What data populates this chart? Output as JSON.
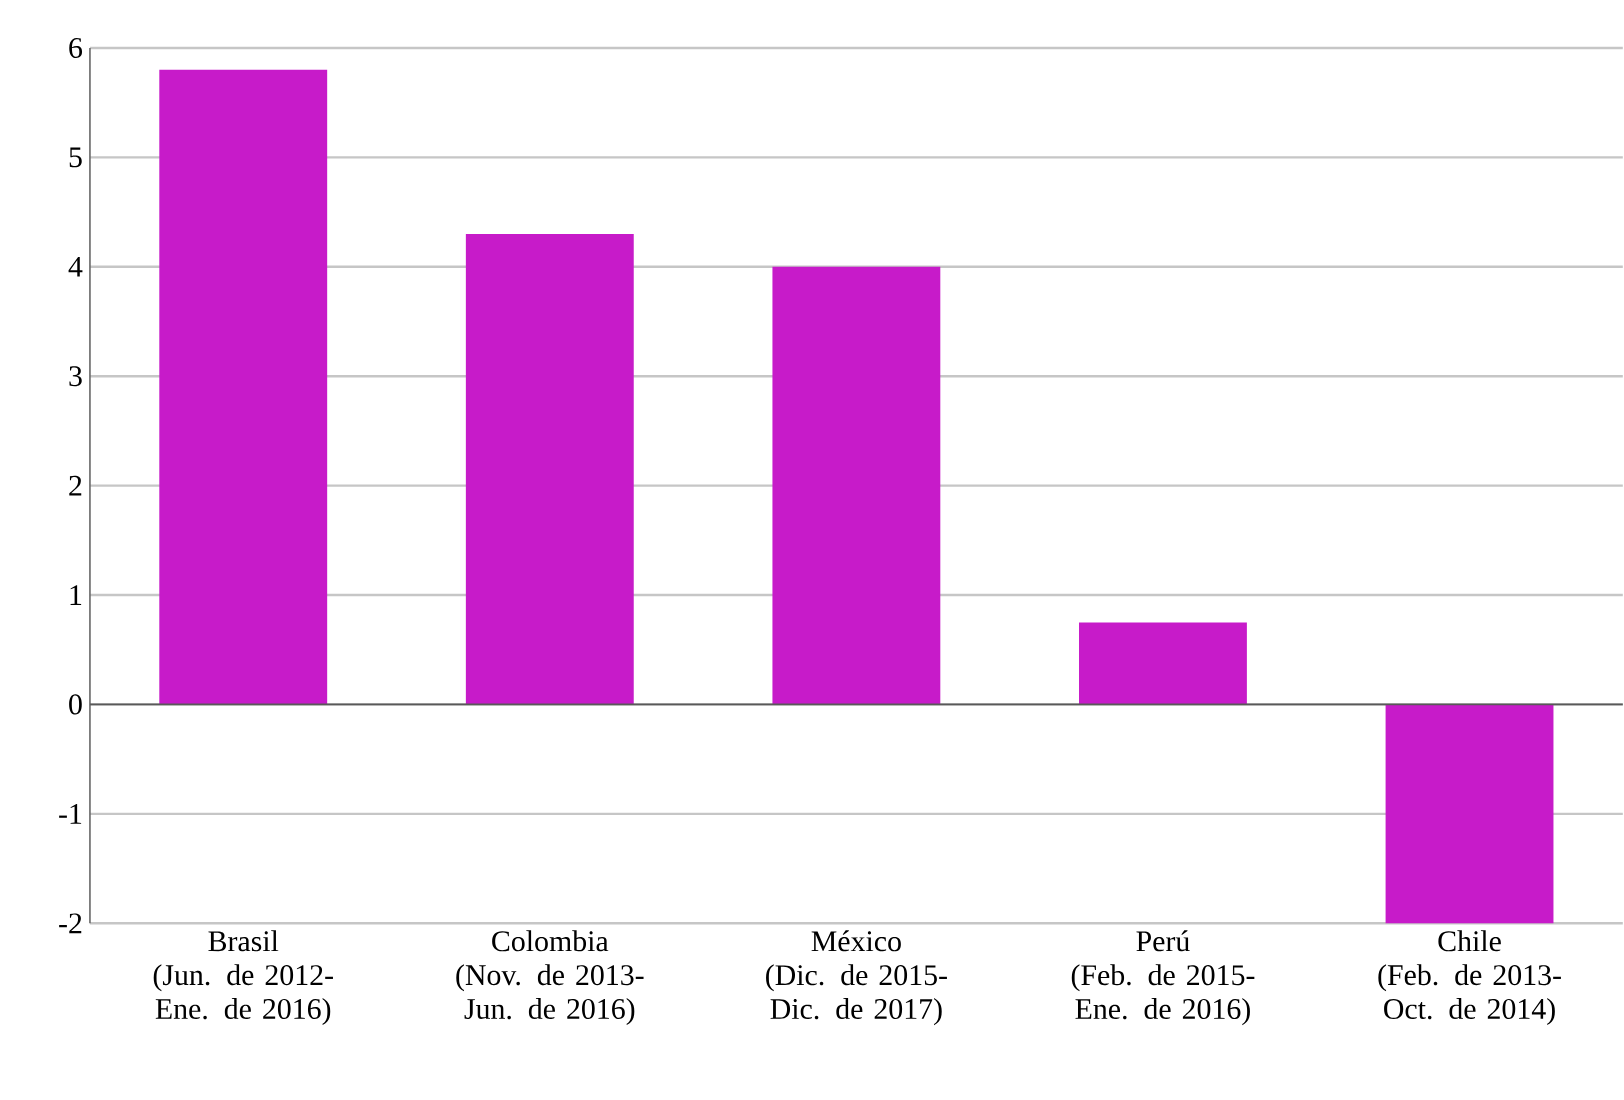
{
  "chart_data": {
    "type": "bar",
    "categories": [
      "Brasil\n(Jun. de 2012-\nEne. de 2016)",
      "Colombia\n(Nov. de 2013-\nJun. de 2016)",
      "México\n(Dic. de 2015-\nDic. de 2017)",
      "Perú\n(Feb. de 2015-\nEne. de 2016)",
      "Chile\n(Feb. de 2013-\nOct. de 2014)"
    ],
    "values": [
      5.8,
      4.3,
      4.0,
      0.75,
      -2.0
    ],
    "color": "#c71bc9",
    "ylim": [
      -2,
      6
    ],
    "yticks": [
      -2,
      -1,
      0,
      1,
      2,
      3,
      4,
      5,
      6
    ],
    "grid": "y"
  }
}
